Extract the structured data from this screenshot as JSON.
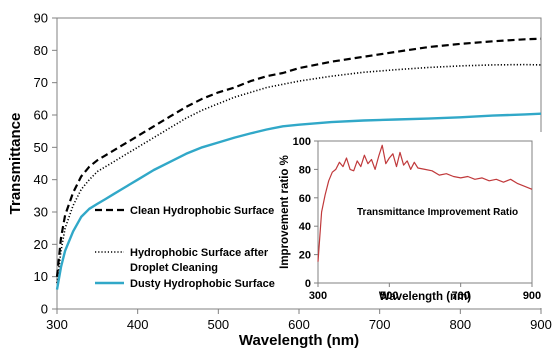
{
  "chart_data": [
    {
      "type": "line",
      "xlabel": "Wavelength (nm)",
      "ylabel": "Transmittance",
      "xlim": [
        300,
        900
      ],
      "ylim": [
        0,
        90
      ],
      "xticks": [
        300,
        400,
        500,
        600,
        700,
        800,
        900
      ],
      "yticks": [
        0,
        10,
        20,
        30,
        40,
        50,
        60,
        70,
        80,
        90
      ],
      "grid": false,
      "legend": "left",
      "series": [
        {
          "name": "Clean Hydrophobic Surface",
          "style": "dashed",
          "color": "#000000",
          "x": [
            300,
            305,
            310,
            320,
            330,
            340,
            350,
            360,
            370,
            380,
            390,
            400,
            420,
            440,
            460,
            480,
            500,
            520,
            540,
            560,
            580,
            600,
            640,
            680,
            720,
            760,
            800,
            840,
            880,
            900
          ],
          "y": [
            10,
            22,
            29,
            36,
            41,
            44,
            46,
            47.5,
            49,
            50.5,
            52,
            53.5,
            56.5,
            59.5,
            62.5,
            65,
            67,
            68.5,
            70.5,
            72,
            73,
            74.5,
            76.5,
            78,
            79.5,
            81,
            82,
            82.8,
            83.4,
            83.6
          ]
        },
        {
          "name": "Hydrophobic Surface after Droplet Cleaning",
          "style": "dotted",
          "color": "#000000",
          "x": [
            300,
            305,
            310,
            320,
            330,
            340,
            350,
            360,
            370,
            380,
            390,
            400,
            420,
            440,
            460,
            480,
            500,
            520,
            540,
            560,
            580,
            600,
            640,
            680,
            720,
            760,
            800,
            840,
            880,
            900
          ],
          "y": [
            8,
            18,
            25,
            32,
            37,
            40,
            42.5,
            44,
            45.5,
            47,
            48.5,
            50,
            53,
            56,
            59,
            61.5,
            63.5,
            65.5,
            67,
            68.5,
            69.5,
            70.5,
            72,
            73.2,
            74,
            74.7,
            75.2,
            75.5,
            75.6,
            75.5
          ]
        },
        {
          "name": "Dusty Hydrophobic Surface",
          "style": "solid",
          "color": "#31A8C8",
          "x": [
            300,
            305,
            310,
            320,
            330,
            340,
            350,
            360,
            370,
            380,
            390,
            400,
            420,
            440,
            460,
            480,
            500,
            520,
            540,
            560,
            580,
            600,
            640,
            680,
            720,
            760,
            800,
            840,
            880,
            900
          ],
          "y": [
            6,
            13,
            18,
            24,
            28.5,
            31,
            32.5,
            34,
            35.5,
            37,
            38.5,
            40,
            43,
            45.5,
            48,
            50,
            51.5,
            53,
            54.3,
            55.5,
            56.5,
            57,
            57.8,
            58.3,
            58.6,
            58.9,
            59.3,
            59.8,
            60.2,
            60.4
          ]
        }
      ]
    },
    {
      "type": "line",
      "title": "Transmittance  Improvement Ratio",
      "xlabel": "Wavelength (nm)",
      "ylabel": "Improvement ratio %",
      "xlim": [
        300,
        900
      ],
      "ylim": [
        0,
        100
      ],
      "xticks": [
        300,
        500,
        700,
        900
      ],
      "yticks": [
        0,
        20,
        40,
        60,
        80,
        100
      ],
      "grid": false,
      "series": [
        {
          "color": "#C0393B",
          "x": [
            300,
            310,
            320,
            330,
            340,
            350,
            360,
            370,
            380,
            390,
            400,
            410,
            420,
            430,
            440,
            450,
            460,
            470,
            480,
            490,
            500,
            510,
            520,
            530,
            540,
            550,
            560,
            570,
            580,
            600,
            620,
            640,
            660,
            680,
            700,
            720,
            740,
            760,
            780,
            800,
            820,
            840,
            860,
            880,
            900
          ],
          "y": [
            15,
            50,
            62,
            72,
            78,
            80,
            85,
            82,
            88,
            80,
            79,
            86,
            82,
            90,
            84,
            87,
            80,
            89,
            97,
            84,
            88,
            91,
            82,
            92,
            83,
            86,
            80,
            85,
            81,
            80,
            79,
            76,
            77,
            75,
            74,
            75,
            73,
            74,
            72,
            73,
            71,
            73,
            70,
            68,
            66
          ]
        }
      ]
    }
  ]
}
